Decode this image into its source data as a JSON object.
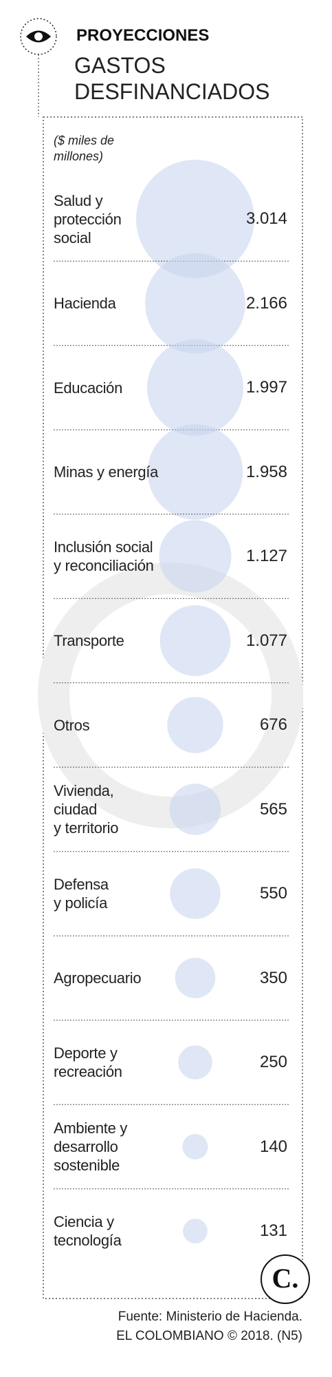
{
  "chart_data": {
    "type": "bubble",
    "title": "PROYECCIONES",
    "subtitle": "GASTOS\nDESFINANCIADOS",
    "unit": "($ miles de\nmillones)",
    "categories": [
      "Salud y\nprotección\nsocial",
      "Hacienda",
      "Educación",
      "Minas y energía",
      "Inclusión social\ny reconciliación",
      "Transporte",
      "Otros",
      "Vivienda,\nciudad\ny territorio",
      "Defensa\ny policía",
      "Agropecuario",
      "Deporte y\nrecreación",
      "Ambiente y\ndesarrollo\nsostenible",
      "Ciencia y\ntecnología"
    ],
    "values": [
      3014,
      2166,
      1997,
      1958,
      1127,
      1077,
      676,
      565,
      550,
      350,
      250,
      140,
      131
    ],
    "value_labels": [
      "3.014",
      "2.166",
      "1.997",
      "1.958",
      "1.127",
      "1.077",
      "676",
      "565",
      "550",
      "350",
      "250",
      "140",
      "131"
    ],
    "color": "#c9d6ee",
    "source": "Fuente: Ministerio de Hacienda.",
    "credit": "EL COLOMBIANO © 2018. (N5)"
  }
}
